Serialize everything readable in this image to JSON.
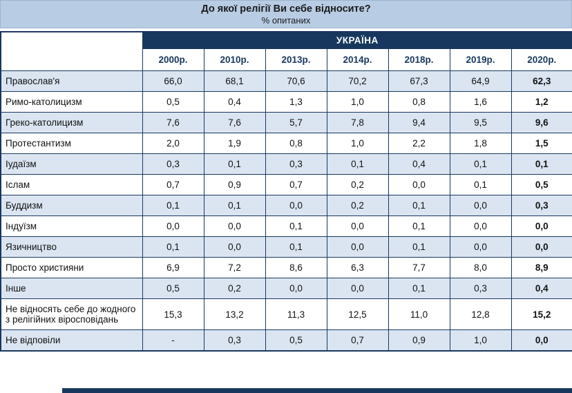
{
  "chart_data": {
    "type": "table",
    "title": "До якої релігії Ви себе відносите?",
    "units": "% опитаних",
    "group_header": "УКРАЇНА",
    "columns": [
      "2000р.",
      "2010р.",
      "2013р.",
      "2014р.",
      "2018р.",
      "2019р.",
      "2020р."
    ],
    "rows": [
      {
        "label": "Православ'я",
        "values": [
          "66,0",
          "68,1",
          "70,6",
          "70,2",
          "67,3",
          "64,9",
          "62,3"
        ]
      },
      {
        "label": "Римо-католицизм",
        "values": [
          "0,5",
          "0,4",
          "1,3",
          "1,0",
          "0,8",
          "1,6",
          "1,2"
        ]
      },
      {
        "label": "Греко-католицизм",
        "values": [
          "7,6",
          "7,6",
          "5,7",
          "7,8",
          "9,4",
          "9,5",
          "9,6"
        ]
      },
      {
        "label": "Протестантизм",
        "values": [
          "2,0",
          "1,9",
          "0,8",
          "1,0",
          "2,2",
          "1,8",
          "1,5"
        ]
      },
      {
        "label": "Іудаїзм",
        "values": [
          "0,3",
          "0,1",
          "0,3",
          "0,1",
          "0,4",
          "0,1",
          "0,1"
        ]
      },
      {
        "label": "Іслам",
        "values": [
          "0,7",
          "0,9",
          "0,7",
          "0,2",
          "0,0",
          "0,1",
          "0,5"
        ]
      },
      {
        "label": "Буддизм",
        "values": [
          "0,1",
          "0,1",
          "0,0",
          "0,2",
          "0,1",
          "0,0",
          "0,3"
        ]
      },
      {
        "label": "Індуїзм",
        "values": [
          "0,0",
          "0,0",
          "0,1",
          "0,0",
          "0,1",
          "0,0",
          "0,0"
        ]
      },
      {
        "label": "Язичництво",
        "values": [
          "0,1",
          "0,0",
          "0,1",
          "0,0",
          "0,1",
          "0,0",
          "0,0"
        ]
      },
      {
        "label": "Просто християни",
        "values": [
          "6,9",
          "7,2",
          "8,6",
          "6,3",
          "7,7",
          "8,0",
          "8,9"
        ]
      },
      {
        "label": "Інше",
        "values": [
          "0,5",
          "0,2",
          "0,0",
          "0,0",
          "0,1",
          "0,3",
          "0,4"
        ]
      },
      {
        "label": "Не відносять себе до жодного з релігійних віросповідань",
        "values": [
          "15,3",
          "13,2",
          "11,3",
          "12,5",
          "11,0",
          "12,8",
          "15,2"
        ]
      },
      {
        "label": "Не відповіли",
        "values": [
          "-",
          "0,3",
          "0,5",
          "0,7",
          "0,9",
          "1,0",
          "0,0"
        ]
      }
    ]
  },
  "colors": {
    "navy": "#17375e",
    "band": "#b8cce4",
    "row_shade": "#dbe5f1"
  }
}
